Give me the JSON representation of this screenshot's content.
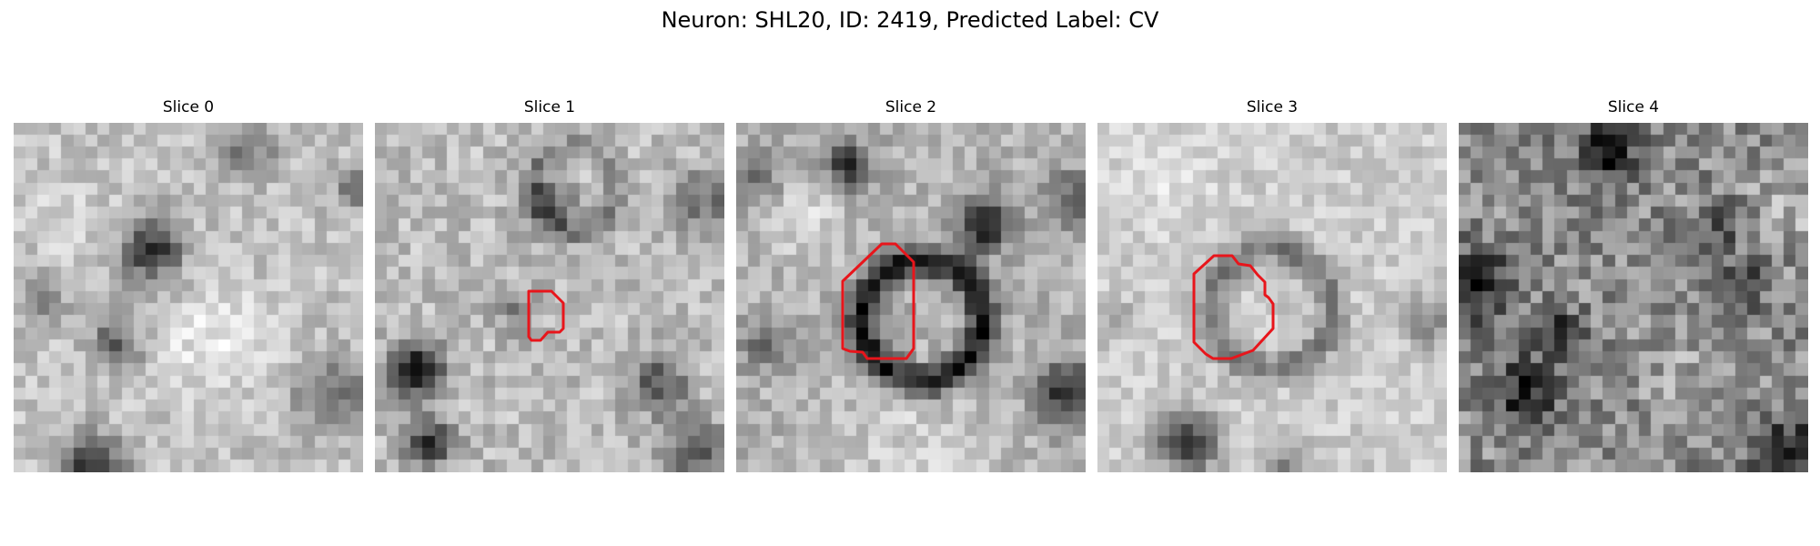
{
  "figure": {
    "title": "Neuron: SHL20, ID: 2419, Predicted Label: CV"
  },
  "panels": [
    {
      "title": "Slice 0",
      "has_roi_outline": false
    },
    {
      "title": "Slice 1",
      "has_roi_outline": true
    },
    {
      "title": "Slice 2",
      "has_roi_outline": true
    },
    {
      "title": "Slice 3",
      "has_roi_outline": true
    },
    {
      "title": "Slice 4",
      "has_roi_outline": false
    }
  ],
  "colors": {
    "roi_outline": "#e8151b",
    "background": "#ffffff"
  },
  "image_style": "grayscale"
}
